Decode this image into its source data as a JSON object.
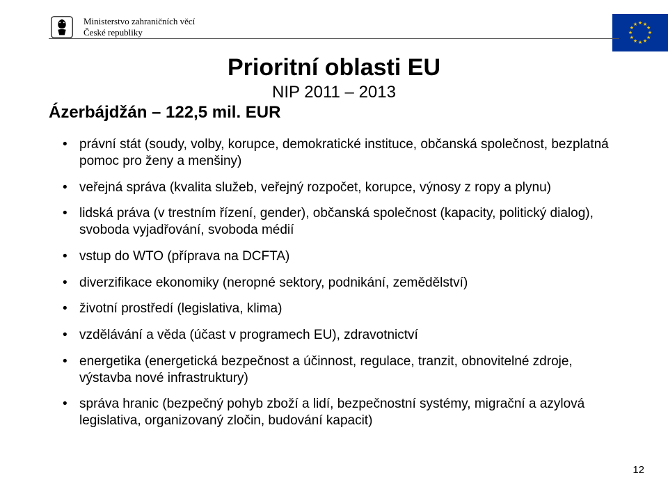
{
  "header": {
    "ministry_line1": "Ministerstvo zahraničních věcí",
    "ministry_line2": "České republiky"
  },
  "title": {
    "main": "Prioritní oblasti EU",
    "sub": "NIP 2011 – 2013"
  },
  "country": "Ázerbájdžán – 122,5 mil. EUR",
  "bullets": [
    "právní stát (soudy, volby, korupce, demokratické instituce, občanská společnost, bezplatná pomoc pro ženy a menšiny)",
    "veřejná správa (kvalita služeb, veřejný rozpočet, korupce, výnosy z ropy a plynu)",
    "lidská práva (v trestním řízení, gender), občanská společnost (kapacity, politický dialog), svoboda vyjadřování, svoboda médií",
    "vstup do WTO (příprava na DCFTA)",
    "diverzifikace ekonomiky (neropné sektory, podnikání, zemědělství)",
    "životní prostředí (legislativa, klima)",
    "vzdělávání a věda (účast v programech EU), zdravotnictví",
    "energetika (energetická bezpečnost a účinnost, regulace, tranzit, obnovitelné zdroje, výstavba nové infrastruktury)",
    "správa hranic (bezpečný pohyb zboží a lidí, bezpečnostní systémy, migrační a azylová legislativa, organizovaný zločin, budování kapacit)"
  ],
  "page_number": "12",
  "colors": {
    "eu_flag_bg": "#003399",
    "eu_star": "#ffcc00",
    "text": "#000000",
    "divider": "#555555",
    "bg": "#ffffff"
  },
  "fonts": {
    "title_size_pt": 26,
    "subtitle_size_pt": 18,
    "body_size_pt": 14,
    "ministry_family": "serif"
  }
}
